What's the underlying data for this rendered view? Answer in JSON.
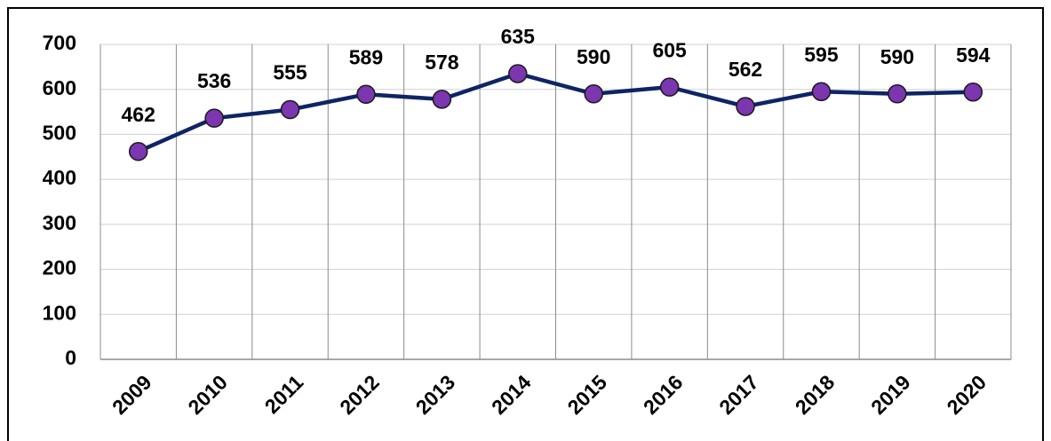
{
  "chart_data": {
    "type": "line",
    "categories": [
      "2009",
      "2010",
      "2011",
      "2012",
      "2013",
      "2014",
      "2015",
      "2016",
      "2017",
      "2018",
      "2019",
      "2020"
    ],
    "values": [
      462,
      536,
      555,
      589,
      578,
      635,
      590,
      605,
      562,
      595,
      590,
      594
    ],
    "color": "#0e2466",
    "marker_color": "#7b36b0",
    "ylim": [
      0,
      700
    ],
    "yticks": [
      0,
      100,
      200,
      300,
      400,
      500,
      600,
      700
    ],
    "grid": true
  }
}
